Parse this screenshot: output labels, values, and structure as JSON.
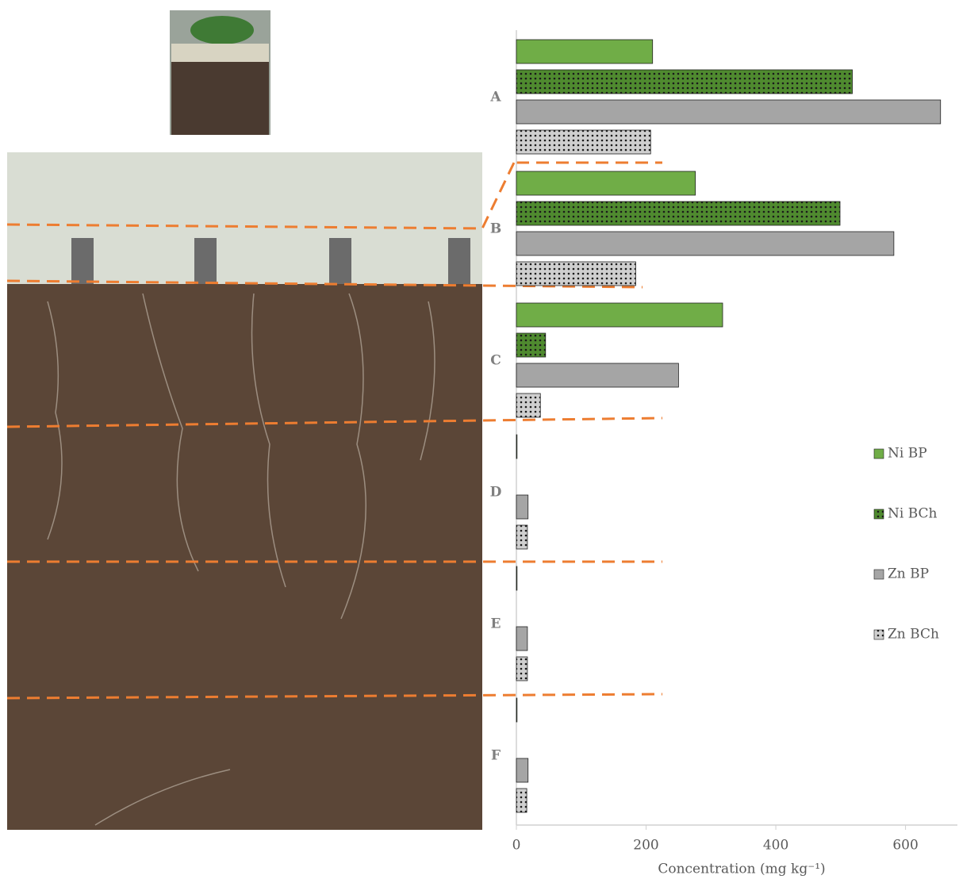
{
  "chart_data": {
    "type": "bar",
    "orientation": "horizontal",
    "x_label": "Concentration (mg kg⁻¹)",
    "categories": [
      "A",
      "B",
      "C",
      "D",
      "E",
      "F"
    ],
    "series": [
      {
        "name": "Ni BP",
        "color": "#70ad47",
        "values": [
          210,
          276,
          318,
          1,
          1,
          1
        ]
      },
      {
        "name": "Ni BCh",
        "color": "#4f8a2f",
        "pattern": "dots",
        "values": [
          518,
          499,
          45,
          0,
          0,
          0
        ]
      },
      {
        "name": "Zn BP",
        "color": "#a5a5a5",
        "values": [
          654,
          582,
          250,
          18,
          17,
          18
        ]
      },
      {
        "name": "Zn BCh",
        "color": "#cfcfcf",
        "pattern": "dots",
        "values": [
          207,
          184,
          37,
          17,
          17,
          16
        ]
      }
    ],
    "xlim": [
      0,
      680
    ],
    "xticks": [
      0,
      200,
      400,
      600
    ],
    "legend": "right"
  }
}
